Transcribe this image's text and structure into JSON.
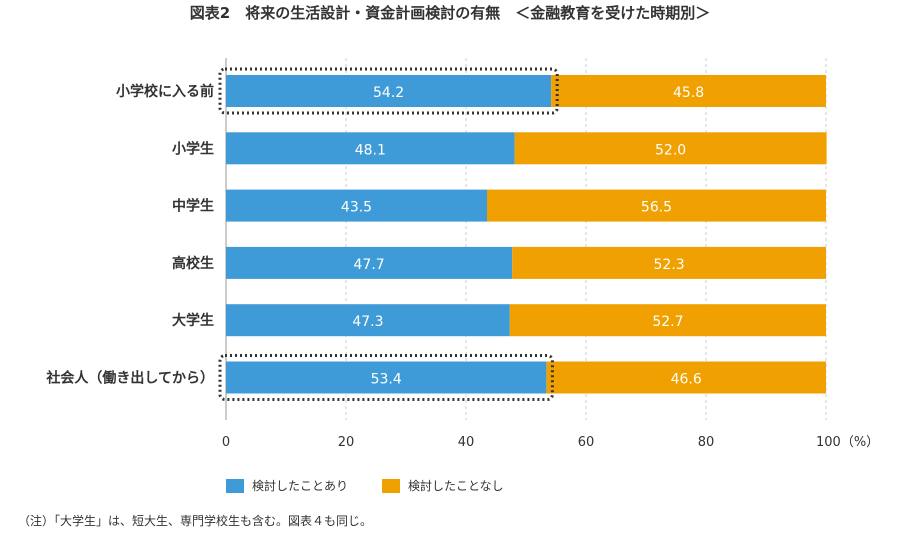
{
  "chart_data": {
    "type": "bar",
    "stacked": true,
    "orientation": "horizontal",
    "title": "図表2　将来の生活設計・資金計画検討の有無　＜金融教育を受けた時期別＞",
    "categories": [
      "小学校に入る前",
      "小学生",
      "中学生",
      "高校生",
      "大学生",
      "社会人（働き出してから）"
    ],
    "series": [
      {
        "name": "検討したことあり",
        "color": "#3f9bd7",
        "values": [
          54.2,
          48.1,
          43.5,
          47.7,
          47.3,
          53.4
        ]
      },
      {
        "name": "検討したことなし",
        "color": "#f0a000",
        "values": [
          45.8,
          52.0,
          56.5,
          52.3,
          52.7,
          46.6
        ]
      }
    ],
    "xlim": [
      0,
      100
    ],
    "xticks": [
      "0",
      "20",
      "40",
      "60",
      "80",
      "100（%）"
    ],
    "grid": true,
    "legend": "bottom",
    "highlighted_categories": [
      "小学校に入る前",
      "社会人（働き出してから）"
    ],
    "note": "（注）「大学生」は、短大生、専門学校生も含む。図表４も同じ。"
  }
}
